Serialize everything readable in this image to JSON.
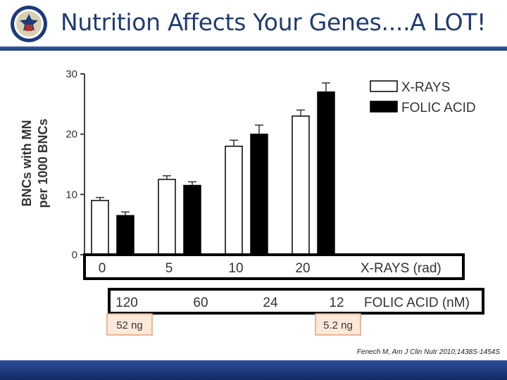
{
  "slide": {
    "title": "Nutrition Affects Your Genes....A LOT!",
    "citation": "Fenech M, Am J Clin Nutr 2010;1438S-1454S",
    "logo_alt": "VA seal"
  },
  "colors": {
    "title": "#1f3b73",
    "header_rule": "#2c4a8f",
    "footer": "#1c3a7c",
    "bar_xray": "#ffffff",
    "bar_folic": "#000000",
    "annotation_fill": "#fde9d9",
    "annotation_border": "#e6a07a"
  },
  "chart_data": {
    "type": "bar",
    "ylabel_line1": "BNCs with MN",
    "ylabel_line2": "per 1000 BNCs",
    "ylim": [
      0,
      30
    ],
    "yticks": [
      "0",
      "10",
      "20",
      "30"
    ],
    "categories": [
      "0",
      "5",
      "10",
      "20"
    ],
    "category_axis_label": "X-RAYS (rad)",
    "secondary_categories": [
      "120",
      "60",
      "24",
      "12"
    ],
    "secondary_axis_label": "FOLIC ACID (nM)",
    "annotations": [
      "52 ng",
      "5.2 ng"
    ],
    "series": [
      {
        "name": "X-RAYS",
        "values": [
          9,
          12.5,
          18,
          23
        ],
        "errors": [
          0.5,
          0.6,
          1.0,
          1.0
        ]
      },
      {
        "name": "FOLIC ACID",
        "values": [
          6.5,
          11.5,
          20,
          27
        ],
        "errors": [
          0.6,
          0.6,
          1.5,
          1.5
        ]
      }
    ],
    "legend_position": "top-right"
  }
}
